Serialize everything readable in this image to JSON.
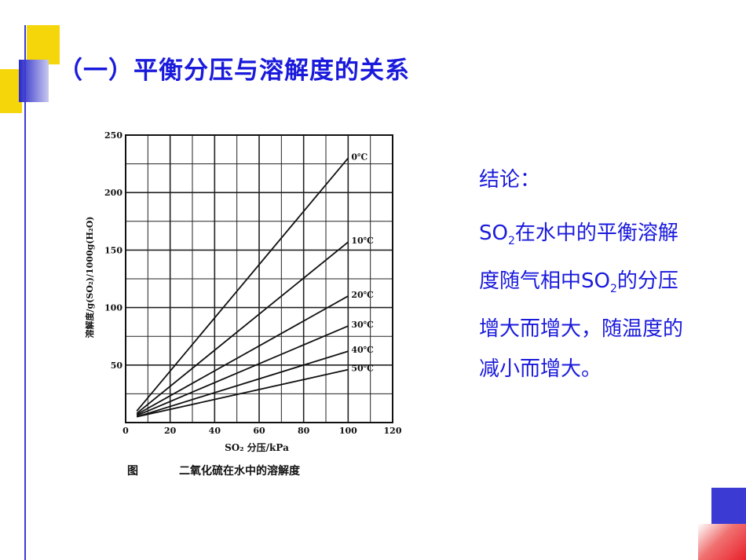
{
  "slide": {
    "title": "（一）平衡分压与溶解度的关系",
    "conclusion_head": "结论：",
    "conclusion_body": {
      "part1": "SO",
      "sub1": "2",
      "part2": "在水中的平衡溶解度随气相中S",
      "part3": "O",
      "sub2": "2",
      "part4": "的分压增大而增大，随温度的减小而增大。"
    },
    "accent_colors": {
      "yellow": "#f5d60a",
      "blue": "#3b3bd4",
      "red": "#e8202a",
      "text": "#1a1adc"
    }
  },
  "figure": {
    "ylabel": "溶解度/g(SO₂)/1000g(H₂O)",
    "xlabel": "SO₂ 分压/kPa",
    "caption_prefix": "图",
    "caption": "二氧化硫在水中的溶解度"
  },
  "chart_data": {
    "type": "line",
    "title": "",
    "xlabel": "SO₂ 分压/kPa",
    "ylabel": "溶解度/g(SO₂)/1000g(H₂O)",
    "xlim": [
      0,
      120
    ],
    "ylim": [
      0,
      250
    ],
    "xticks": [
      0,
      20,
      40,
      60,
      80,
      100,
      120
    ],
    "yticks": [
      50,
      100,
      150,
      200,
      250
    ],
    "grid": true,
    "series": [
      {
        "name": "0℃",
        "x": [
          5,
          100
        ],
        "y": [
          10,
          230
        ]
      },
      {
        "name": "10℃",
        "x": [
          5,
          100
        ],
        "y": [
          8,
          157
        ]
      },
      {
        "name": "20℃",
        "x": [
          5,
          100
        ],
        "y": [
          7,
          110
        ]
      },
      {
        "name": "30℃",
        "x": [
          5,
          100
        ],
        "y": [
          6,
          84
        ]
      },
      {
        "name": "40℃",
        "x": [
          5,
          100
        ],
        "y": [
          5,
          62
        ]
      },
      {
        "name": "50℃",
        "x": [
          5,
          100
        ],
        "y": [
          5,
          46
        ]
      }
    ]
  }
}
